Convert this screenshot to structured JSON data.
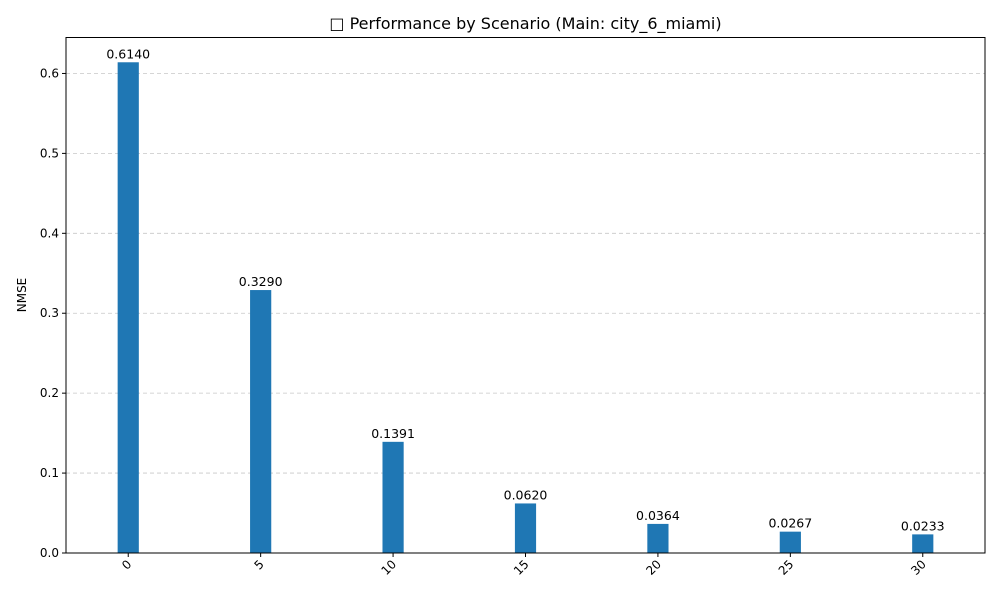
{
  "chart_data": {
    "type": "bar",
    "title": "□ Performance by Scenario (Main: city_6_miami)",
    "xlabel": "",
    "ylabel": "NMSE",
    "categories": [
      "0",
      "5",
      "10",
      "15",
      "20",
      "25",
      "30"
    ],
    "x": [
      0,
      5,
      10,
      15,
      20,
      25,
      30
    ],
    "values": [
      0.614,
      0.329,
      0.1391,
      0.062,
      0.0364,
      0.0267,
      0.0233
    ],
    "value_labels": [
      "0.6140",
      "0.3290",
      "0.1391",
      "0.0620",
      "0.0364",
      "0.0267",
      "0.0233"
    ],
    "ylim": [
      0,
      0.645
    ],
    "xlim": [
      -2.35,
      32.35
    ],
    "yticks": [
      0.0,
      0.1,
      0.2,
      0.3,
      0.4,
      0.5,
      0.6
    ],
    "ytick_labels": [
      "0.0",
      "0.1",
      "0.2",
      "0.3",
      "0.4",
      "0.5",
      "0.6"
    ],
    "bar_width": 0.8,
    "grid": "y-dashed",
    "bar_color": "#1f77b4"
  }
}
